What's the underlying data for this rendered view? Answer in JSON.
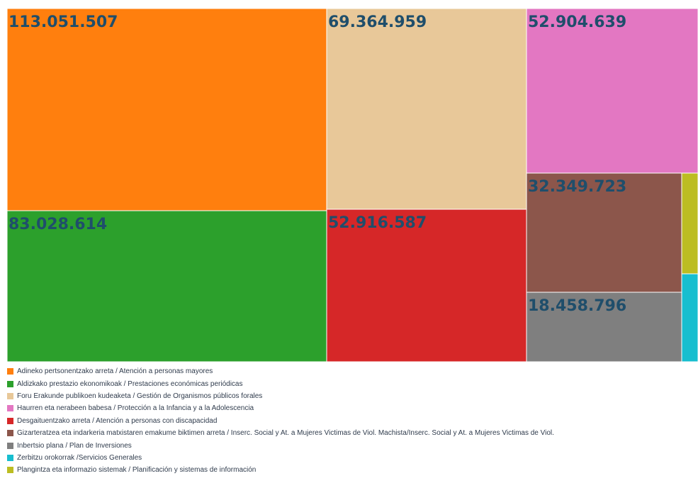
{
  "chart_data": {
    "type": "treemap",
    "title": "",
    "tiles": [
      {
        "name": "Adineko pertsonentzako arreta / Atención a personas mayores",
        "value": 113051507,
        "label": "113.051.507",
        "color": "#ff7f0e"
      },
      {
        "name": "Aldizkako prestazio ekonomikoak / Prestaciones económicas periódicas",
        "value": 83028614,
        "label": "83.028.614",
        "color": "#2ca02c"
      },
      {
        "name": "Foru Erakunde publikoen kudeaketa / Gestión de Organismos públicos forales",
        "value": 69364959,
        "label": "69.364.959",
        "color": "#e8c899"
      },
      {
        "name": "Haurren eta nerabeen babesa  / Protección a la Infancia y a la Adolescencia",
        "value": 52904639,
        "label": "52.904.639",
        "color": "#e377c2"
      },
      {
        "name": "Desgaituentzako arreta / Atención a personas con discapacidad",
        "value": 52916587,
        "label": "52.916.587",
        "color": "#d62728"
      },
      {
        "name": "Gizarteratzea eta indarkeria matxistaren emakume biktimen arreta / Inserc. Social y At. a Mujeres Victimas de Viol. Machista/Inserc. Social y At. a Mujeres Victimas de Viol.",
        "value": 32349723,
        "label": "32.349.723",
        "color": "#8c564b"
      },
      {
        "name": "Inbertsio plana / Plan de Inversiones",
        "value": 18458796,
        "label": "18.458.796",
        "color": "#7f7f7f"
      },
      {
        "name": "Zerbitzu orokorrak /Servicios Generales",
        "value": null,
        "label": "",
        "color": "#17becf"
      },
      {
        "name": "Plangintza eta informazio sistemak  / Planificación y sistemas de información",
        "value": null,
        "label": "",
        "color": "#bcbd22"
      }
    ],
    "legend_position": "bottom-left"
  },
  "legend": [
    {
      "label": "Adineko pertsonentzako arreta / Atención a personas mayores",
      "color": "#ff7f0e"
    },
    {
      "label": "Aldizkako prestazio ekonomikoak / Prestaciones económicas periódicas",
      "color": "#2ca02c"
    },
    {
      "label": "Foru Erakunde publikoen kudeaketa / Gestión de Organismos públicos forales",
      "color": "#e8c899"
    },
    {
      "label": "Haurren eta nerabeen babesa  / Protección a la Infancia y a la Adolescencia",
      "color": "#e377c2"
    },
    {
      "label": "Desgaituentzako arreta / Atención a personas con discapacidad",
      "color": "#d62728"
    },
    {
      "label": "Gizarteratzea eta indarkeria matxistaren emakume biktimen arreta / Inserc. Social y At. a Mujeres Victimas de Viol. Machista/Inserc. Social y At. a Mujeres Victimas de Viol.",
      "color": "#8c564b"
    },
    {
      "label": "Inbertsio plana / Plan de Inversiones",
      "color": "#7f7f7f"
    },
    {
      "label": "Zerbitzu orokorrak /Servicios Generales",
      "color": "#17becf"
    },
    {
      "label": "Plangintza eta informazio sistemak  / Planificación y sistemas de información",
      "color": "#bcbd22"
    }
  ]
}
